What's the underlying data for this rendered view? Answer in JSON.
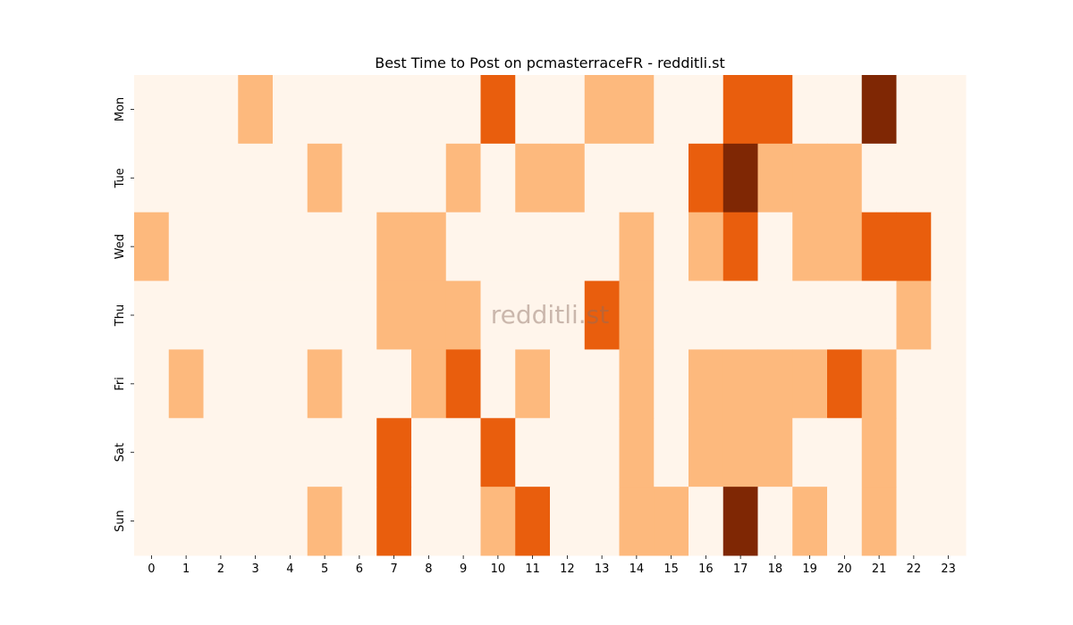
{
  "chart_data": {
    "type": "heatmap",
    "title": "Best Time to Post on pcmasterraceFR - redditli.st",
    "watermark": "redditli.st",
    "xlabel": "",
    "ylabel": "",
    "x_categories": [
      "0",
      "1",
      "2",
      "3",
      "4",
      "5",
      "6",
      "7",
      "8",
      "9",
      "10",
      "11",
      "12",
      "13",
      "14",
      "15",
      "16",
      "17",
      "18",
      "19",
      "20",
      "21",
      "22",
      "23"
    ],
    "y_categories": [
      "Mon",
      "Tue",
      "Wed",
      "Thu",
      "Fri",
      "Sat",
      "Sun"
    ],
    "value_range": [
      0,
      3
    ],
    "colormap": "Oranges",
    "colors": [
      "#fff5eb",
      "#fdb97d",
      "#e95e0d",
      "#7f2704"
    ],
    "values": [
      [
        0,
        0,
        0,
        1,
        0,
        0,
        0,
        0,
        0,
        0,
        2,
        0,
        0,
        1,
        1,
        0,
        0,
        2,
        2,
        0,
        0,
        3,
        0,
        0
      ],
      [
        0,
        0,
        0,
        0,
        0,
        1,
        0,
        0,
        0,
        1,
        0,
        1,
        1,
        0,
        0,
        0,
        2,
        3,
        1,
        1,
        1,
        0,
        0,
        0
      ],
      [
        1,
        0,
        0,
        0,
        0,
        0,
        0,
        1,
        1,
        0,
        0,
        0,
        0,
        0,
        1,
        0,
        1,
        2,
        0,
        1,
        1,
        2,
        2,
        0
      ],
      [
        0,
        0,
        0,
        0,
        0,
        0,
        0,
        1,
        1,
        1,
        0,
        0,
        0,
        2,
        1,
        0,
        0,
        0,
        0,
        0,
        0,
        0,
        1,
        0
      ],
      [
        0,
        1,
        0,
        0,
        0,
        1,
        0,
        0,
        1,
        2,
        0,
        1,
        0,
        0,
        1,
        0,
        1,
        1,
        1,
        1,
        2,
        1,
        0,
        0
      ],
      [
        0,
        0,
        0,
        0,
        0,
        0,
        0,
        2,
        0,
        0,
        2,
        0,
        0,
        0,
        1,
        0,
        1,
        1,
        1,
        0,
        0,
        1,
        0,
        0
      ],
      [
        0,
        0,
        0,
        0,
        0,
        1,
        0,
        2,
        0,
        0,
        1,
        2,
        0,
        0,
        1,
        1,
        0,
        3,
        0,
        1,
        0,
        1,
        0,
        0
      ]
    ]
  }
}
